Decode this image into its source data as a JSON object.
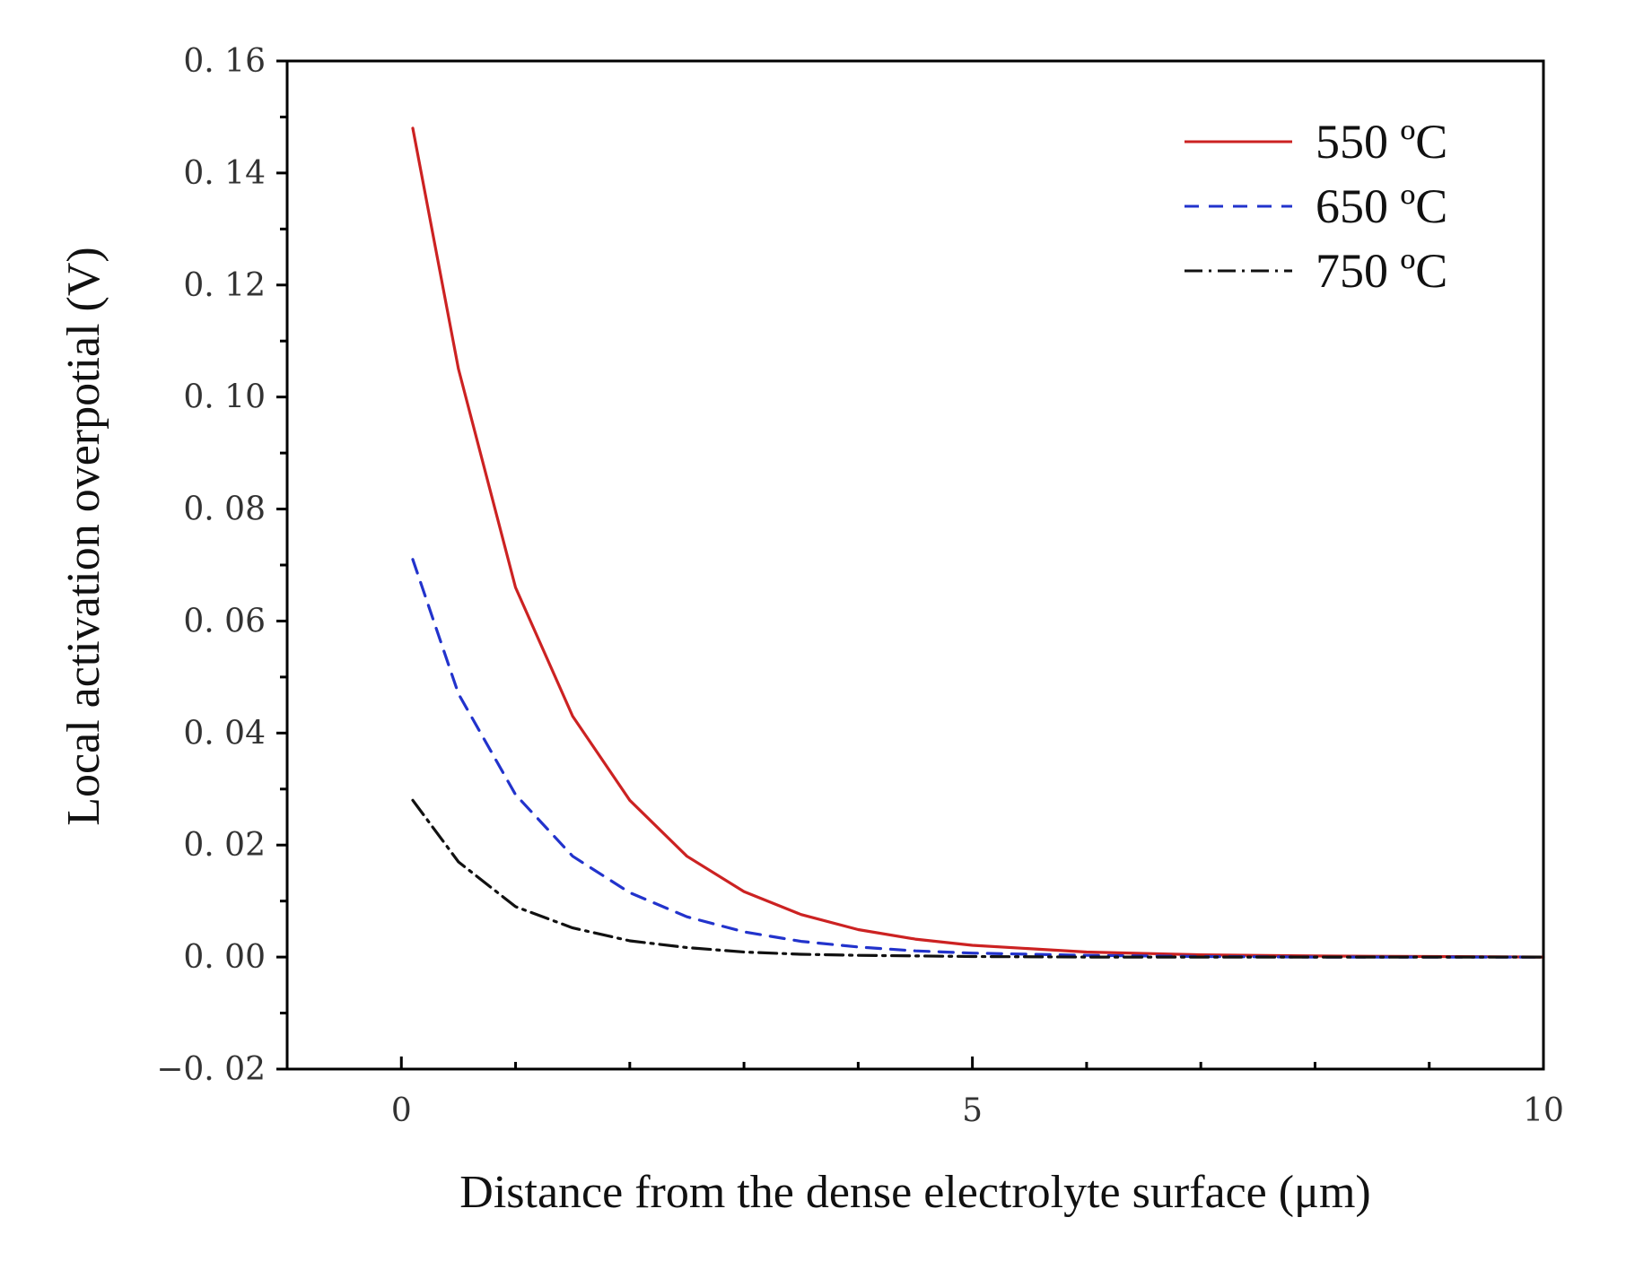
{
  "chart_data": {
    "type": "line",
    "title": "",
    "xlabel": "Distance from the dense electrolyte surface (μm)",
    "ylabel": "Local activation overpotial (V)",
    "xlim": [
      -1,
      10
    ],
    "ylim": [
      -0.02,
      0.16
    ],
    "x_ticks": [
      0,
      5,
      10
    ],
    "x_tick_labels": [
      "0",
      "5",
      "10"
    ],
    "x_minor_ticks": [
      1,
      2,
      3,
      4,
      6,
      7,
      8,
      9
    ],
    "y_ticks": [
      -0.02,
      0.0,
      0.02,
      0.04,
      0.06,
      0.08,
      0.1,
      0.12,
      0.14,
      0.16
    ],
    "y_tick_labels": [
      "−0. 02",
      "0. 00",
      "0. 02",
      "0. 04",
      "0. 06",
      "0. 08",
      "0. 10",
      "0. 12",
      "0. 14",
      "0. 16"
    ],
    "y_minor_ticks": [
      -0.01,
      0.01,
      0.03,
      0.05,
      0.07,
      0.09,
      0.11,
      0.13,
      0.15
    ],
    "legend_position": "top-right",
    "series": [
      {
        "name": "550 ºC",
        "color": "#cc2222",
        "dash": "solid",
        "x": [
          0.1,
          0.5,
          1.0,
          1.5,
          2.0,
          2.5,
          3.0,
          3.5,
          4.0,
          4.5,
          5.0,
          6.0,
          7.0,
          8.0,
          9.0,
          10.0
        ],
        "y": [
          0.148,
          0.105,
          0.066,
          0.043,
          0.028,
          0.018,
          0.0117,
          0.0076,
          0.0049,
          0.0032,
          0.0021,
          0.0009,
          0.0004,
          0.0002,
          0.0001,
          0.0
        ]
      },
      {
        "name": "650 ºC",
        "color": "#2233cc",
        "dash": "dashed",
        "x": [
          0.1,
          0.5,
          1.0,
          1.5,
          2.0,
          2.5,
          3.0,
          3.5,
          4.0,
          4.5,
          5.0,
          6.0,
          7.0,
          8.0,
          9.0,
          10.0
        ],
        "y": [
          0.071,
          0.047,
          0.029,
          0.018,
          0.0115,
          0.0072,
          0.0045,
          0.0028,
          0.0018,
          0.0011,
          0.0007,
          0.0003,
          0.0001,
          0.0,
          0.0,
          0.0
        ]
      },
      {
        "name": "750 ºC",
        "color": "#111111",
        "dash": "dashdot",
        "x": [
          0.1,
          0.5,
          1.0,
          1.5,
          2.0,
          2.5,
          3.0,
          3.5,
          4.0,
          5.0,
          6.0,
          7.0,
          8.0,
          9.0,
          10.0
        ],
        "y": [
          0.028,
          0.017,
          0.009,
          0.0052,
          0.0029,
          0.0017,
          0.0009,
          0.0005,
          0.0003,
          0.0001,
          0.0,
          0.0,
          0.0,
          0.0,
          0.0
        ]
      }
    ]
  }
}
